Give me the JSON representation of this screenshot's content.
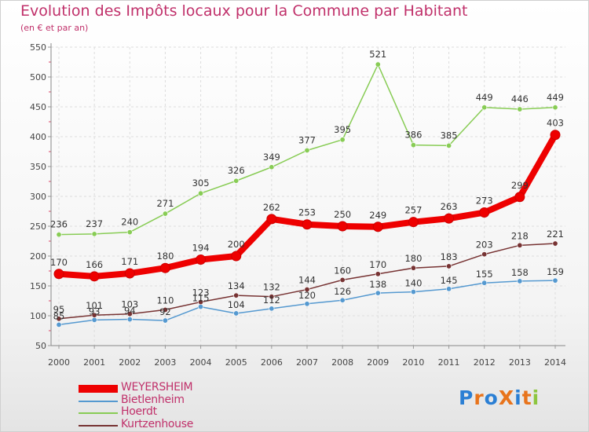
{
  "title": "Evolution des Impôts locaux pour la Commune par Habitant",
  "subtitle": "(en € et par an)",
  "logo": {
    "text": "ProXiti",
    "letter_colors": [
      "#2b7fd4",
      "#e8741c",
      "#2b7fd4",
      "#e8741c",
      "#2b7fd4",
      "#e8741c",
      "#8dc63f"
    ]
  },
  "chart_data": {
    "type": "line",
    "title": "Evolution des Impôts locaux pour la Commune par Habitant",
    "subtitle": "(en € et par an)",
    "xlabel": "",
    "ylabel": "",
    "x": [
      "2000",
      "2001",
      "2002",
      "2003",
      "2004",
      "2005",
      "2006",
      "2007",
      "2008",
      "2009",
      "2010",
      "2011",
      "2012",
      "2013",
      "2014"
    ],
    "ylim": [
      50,
      550
    ],
    "yticks": [
      50,
      100,
      150,
      200,
      250,
      300,
      350,
      400,
      450,
      500,
      550
    ],
    "grid": true,
    "legend_position": "bottom-left",
    "series": [
      {
        "name": "WEYERSHEIM",
        "color": "#ee0000",
        "emphasis": true,
        "values": [
          170,
          166,
          171,
          180,
          194,
          200,
          262,
          253,
          250,
          249,
          257,
          263,
          273,
          299,
          403
        ],
        "labels": [
          "170",
          "166",
          "171",
          "180",
          "194",
          "200",
          "262",
          "253",
          "250",
          "249",
          "257",
          "263",
          "273",
          "299",
          "403"
        ]
      },
      {
        "name": "Bietlenheim",
        "color": "#5599d0",
        "values": [
          85,
          93,
          94,
          92,
          115,
          104,
          112,
          120,
          126,
          138,
          140,
          145,
          155,
          158,
          159
        ],
        "labels": [
          "85",
          "93",
          "94",
          "92",
          "115",
          "104",
          "112",
          "120",
          "126",
          "138",
          "140",
          "145",
          "155",
          "158",
          "159"
        ]
      },
      {
        "name": "Hoerdt",
        "color": "#88cc55",
        "values": [
          236,
          237,
          240,
          271,
          305,
          326,
          349,
          377,
          395,
          521,
          386,
          385,
          449,
          446,
          449
        ],
        "labels": [
          "236",
          "237",
          "240",
          "271",
          "305",
          "326",
          "349",
          "377",
          "395",
          "521",
          "386",
          "385",
          "449",
          "446",
          "449"
        ]
      },
      {
        "name": "Kurtzenhouse",
        "color": "#773333",
        "values": [
          95,
          101,
          103,
          110,
          123,
          134,
          132,
          144,
          160,
          170,
          180,
          183,
          203,
          218,
          221
        ],
        "labels": [
          "95",
          "101",
          "103",
          "110",
          "123",
          "134",
          "132",
          "144",
          "160",
          "170",
          "180",
          "183",
          "203",
          "218",
          "221"
        ]
      }
    ]
  }
}
